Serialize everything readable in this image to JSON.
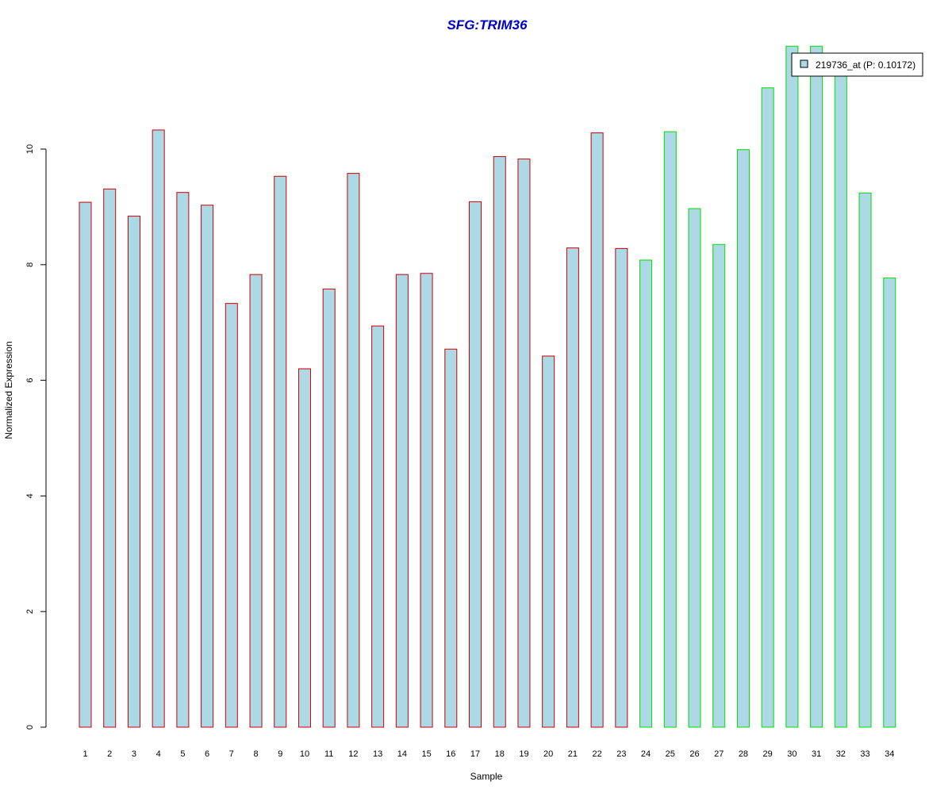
{
  "chart_data": {
    "type": "bar",
    "title": "SFG:TRIM36",
    "xlabel": "Sample",
    "ylabel": "Normalized Expression",
    "categories": [
      "1",
      "2",
      "3",
      "4",
      "5",
      "6",
      "7",
      "8",
      "9",
      "10",
      "11",
      "12",
      "13",
      "14",
      "15",
      "16",
      "17",
      "18",
      "19",
      "20",
      "21",
      "22",
      "23",
      "24",
      "25",
      "26",
      "27",
      "28",
      "29",
      "30",
      "31",
      "32",
      "33",
      "34"
    ],
    "values": [
      9.08,
      9.31,
      8.84,
      10.33,
      9.25,
      9.03,
      7.33,
      7.83,
      9.53,
      6.2,
      7.58,
      9.58,
      6.94,
      7.83,
      7.85,
      6.54,
      9.09,
      9.87,
      9.83,
      6.42,
      8.29,
      10.28,
      8.28,
      8.08,
      10.3,
      8.97,
      8.35,
      9.99,
      11.06,
      11.78,
      11.78,
      11.45,
      9.24,
      7.77
    ],
    "group_colors": [
      "#cc0000",
      "#cc0000",
      "#cc0000",
      "#cc0000",
      "#cc0000",
      "#cc0000",
      "#cc0000",
      "#cc0000",
      "#cc0000",
      "#cc0000",
      "#cc0000",
      "#cc0000",
      "#cc0000",
      "#cc0000",
      "#cc0000",
      "#cc0000",
      "#cc0000",
      "#cc0000",
      "#cc0000",
      "#cc0000",
      "#cc0000",
      "#cc0000",
      "#cc0000",
      "#00dd00",
      "#00dd00",
      "#00dd00",
      "#00dd00",
      "#00dd00",
      "#00dd00",
      "#00dd00",
      "#00dd00",
      "#00dd00",
      "#00dd00",
      "#00dd00"
    ],
    "bar_fill": "#add8e6",
    "ylim": [
      0,
      11.8
    ],
    "yticks": [
      0,
      2,
      4,
      6,
      8,
      10
    ],
    "grid": false,
    "legend": {
      "placement": "top-right",
      "entries": [
        {
          "label": "219736_at (P: 0.10172)",
          "color": "#add8e6"
        }
      ]
    }
  }
}
